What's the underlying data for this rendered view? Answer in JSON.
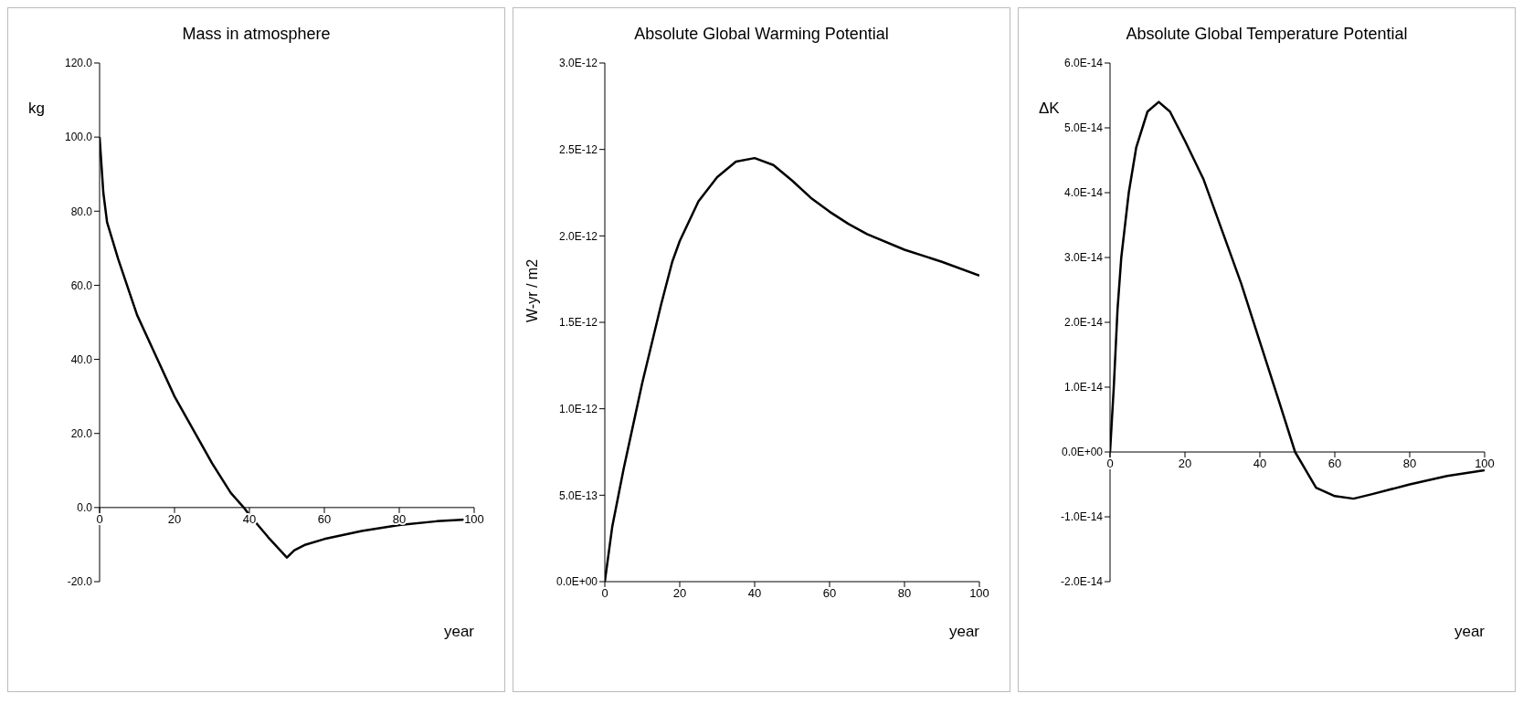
{
  "chart_data": [
    {
      "type": "line",
      "title": "Mass in atmosphere",
      "xlabel": "year",
      "ylabel": "kg",
      "color": "#000000",
      "x": [
        0,
        1,
        2,
        5,
        10,
        15,
        20,
        25,
        30,
        35,
        38.5,
        40,
        45,
        50,
        52,
        55,
        60,
        70,
        80,
        90,
        100
      ],
      "values": [
        100,
        85,
        77,
        67,
        52,
        41,
        30,
        21,
        12,
        4,
        0,
        -2,
        -8,
        -13.5,
        -11.5,
        -10,
        -8.5,
        -6.3,
        -4.7,
        -3.7,
        -3.1
      ],
      "xlim": [
        0,
        100
      ],
      "xticks": [
        0,
        20,
        40,
        60,
        80,
        100
      ],
      "ylim": [
        -20,
        120
      ],
      "yticks": [
        {
          "value": -20,
          "label": "-20.0"
        },
        {
          "value": 0,
          "label": "0.0"
        },
        {
          "value": 20,
          "label": "20.0"
        },
        {
          "value": 40,
          "label": "40.0"
        },
        {
          "value": 60,
          "label": "60.0"
        },
        {
          "value": 80,
          "label": "80.0"
        },
        {
          "value": 100,
          "label": "100.0"
        },
        {
          "value": 120,
          "label": "120.0"
        }
      ]
    },
    {
      "type": "line",
      "title": "Absolute Global Warming Potential",
      "xlabel": "year",
      "ylabel": "W-yr / m2",
      "color": "#000000",
      "x": [
        0,
        2,
        5,
        8,
        10,
        12,
        15,
        18,
        20,
        25,
        30,
        35,
        40,
        45,
        50,
        55,
        60,
        65,
        70,
        80,
        90,
        100
      ],
      "values": [
        0,
        3.2e-13,
        6.5e-13,
        9.5e-13,
        1.15e-12,
        1.33e-12,
        1.6e-12,
        1.85e-12,
        1.97e-12,
        2.2e-12,
        2.34e-12,
        2.43e-12,
        2.45e-12,
        2.41e-12,
        2.32e-12,
        2.22e-12,
        2.14e-12,
        2.07e-12,
        2.01e-12,
        1.92e-12,
        1.85e-12,
        1.77e-12
      ],
      "xlim": [
        0,
        100
      ],
      "xticks": [
        0,
        20,
        40,
        60,
        80,
        100
      ],
      "ylim": [
        0,
        3e-12
      ],
      "yticks": [
        {
          "value": 0,
          "label": "0.0E+00"
        },
        {
          "value": 5e-13,
          "label": "5.0E-13"
        },
        {
          "value": 1e-12,
          "label": "1.0E-12"
        },
        {
          "value": 1.5e-12,
          "label": "1.5E-12"
        },
        {
          "value": 2e-12,
          "label": "2.0E-12"
        },
        {
          "value": 2.5e-12,
          "label": "2.5E-12"
        },
        {
          "value": 3e-12,
          "label": "3.0E-12"
        }
      ]
    },
    {
      "type": "line",
      "title": "Absolute Global Temperature Potential",
      "xlabel": "year",
      "ylabel": "ΔK",
      "color": "#000000",
      "x": [
        0,
        1,
        2,
        3,
        5,
        7,
        10,
        13,
        16,
        20,
        25,
        30,
        35,
        40,
        45,
        49.4,
        55,
        60,
        65,
        70,
        80,
        90,
        100
      ],
      "values": [
        0,
        1e-14,
        2.2e-14,
        3e-14,
        4e-14,
        4.7e-14,
        5.25e-14,
        5.4e-14,
        5.25e-14,
        4.8e-14,
        4.2e-14,
        3.4e-14,
        2.6e-14,
        1.7e-14,
        8e-15,
        0,
        -5.5e-15,
        -6.8e-15,
        -7.2e-15,
        -6.5e-15,
        -5e-15,
        -3.7e-15,
        -2.8e-15
      ],
      "xlim": [
        0,
        100
      ],
      "xticks": [
        0,
        20,
        40,
        60,
        80,
        100
      ],
      "ylim": [
        -2e-14,
        6e-14
      ],
      "yticks": [
        {
          "value": -2e-14,
          "label": "-2.0E-14"
        },
        {
          "value": -1e-14,
          "label": "-1.0E-14"
        },
        {
          "value": 0,
          "label": "0.0E+00"
        },
        {
          "value": 1e-14,
          "label": "1.0E-14"
        },
        {
          "value": 2e-14,
          "label": "2.0E-14"
        },
        {
          "value": 3e-14,
          "label": "3.0E-14"
        },
        {
          "value": 4e-14,
          "label": "4.0E-14"
        },
        {
          "value": 5e-14,
          "label": "5.0E-14"
        },
        {
          "value": 6e-14,
          "label": "6.0E-14"
        }
      ]
    }
  ]
}
